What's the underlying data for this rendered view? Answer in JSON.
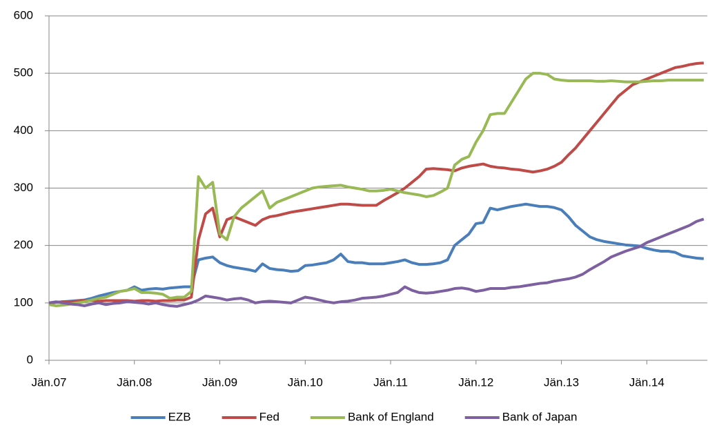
{
  "chart_data": {
    "type": "line",
    "x": [
      0,
      1,
      2,
      3,
      4,
      5,
      6,
      7,
      8,
      9,
      10,
      11,
      12,
      13,
      14,
      15,
      16,
      17,
      18,
      19,
      20,
      21,
      22,
      23,
      24,
      25,
      26,
      27,
      28,
      29,
      30,
      31,
      32,
      33,
      34,
      35,
      36,
      37,
      38,
      39,
      40,
      41,
      42,
      43,
      44,
      45,
      46,
      47,
      48,
      49,
      50,
      51,
      52,
      53,
      54,
      55,
      56,
      57,
      58,
      59,
      60,
      61,
      62,
      63,
      64,
      65,
      66,
      67,
      68,
      69,
      70,
      71,
      72,
      73,
      74,
      75,
      76,
      77,
      78,
      79,
      80,
      81,
      82,
      83,
      84,
      85,
      86,
      87,
      88,
      89,
      90,
      91,
      92
    ],
    "xlim": [
      0,
      92.5
    ],
    "xticks": [
      {
        "value": 0,
        "label": "Jän.07"
      },
      {
        "value": 12,
        "label": "Jän.08"
      },
      {
        "value": 24,
        "label": "Jän.09"
      },
      {
        "value": 36,
        "label": "Jän.10"
      },
      {
        "value": 48,
        "label": "Jän.11"
      },
      {
        "value": 60,
        "label": "Jän.12"
      },
      {
        "value": 72,
        "label": "Jän.13"
      },
      {
        "value": 84,
        "label": "Jän.14"
      }
    ],
    "ylim": [
      0,
      600
    ],
    "yticks": [
      0,
      100,
      200,
      300,
      400,
      500,
      600
    ],
    "grid": true,
    "legend": "bottom",
    "series": [
      {
        "name": "EZB",
        "color": "#4a7ebb",
        "values": [
          100,
          101,
          102,
          103,
          104,
          105,
          108,
          112,
          115,
          118,
          120,
          122,
          128,
          122,
          124,
          125,
          124,
          126,
          127,
          128,
          128,
          175,
          178,
          180,
          170,
          165,
          162,
          160,
          158,
          155,
          168,
          160,
          158,
          157,
          155,
          156,
          165,
          166,
          168,
          170,
          175,
          185,
          172,
          170,
          170,
          168,
          168,
          168,
          170,
          172,
          175,
          170,
          167,
          167,
          168,
          170,
          175,
          200,
          210,
          220,
          238,
          240,
          265,
          262,
          265,
          268,
          270,
          272,
          270,
          268,
          268,
          266,
          262,
          250,
          235,
          225,
          215,
          210,
          207,
          205,
          203,
          201,
          200,
          199,
          195,
          192,
          190,
          190,
          188,
          182,
          180,
          178,
          177
        ]
      },
      {
        "name": "Fed",
        "color": "#be4b48",
        "values": [
          100,
          101,
          102,
          102,
          103,
          104,
          104,
          103,
          104,
          104,
          104,
          104,
          103,
          104,
          104,
          103,
          104,
          104,
          105,
          105,
          110,
          210,
          255,
          265,
          215,
          245,
          250,
          245,
          240,
          235,
          245,
          250,
          252,
          255,
          258,
          260,
          262,
          264,
          266,
          268,
          270,
          272,
          272,
          271,
          270,
          270,
          270,
          278,
          285,
          292,
          300,
          310,
          320,
          333,
          334,
          333,
          332,
          330,
          335,
          338,
          340,
          342,
          338,
          336,
          335,
          333,
          332,
          330,
          328,
          330,
          333,
          338,
          345,
          358,
          370,
          385,
          400,
          415,
          430,
          445,
          460,
          470,
          480,
          485,
          490,
          495,
          500,
          505,
          510,
          512,
          515,
          517,
          518
        ]
      },
      {
        "name": "Bank of England",
        "color": "#98b954",
        "values": [
          97,
          95,
          96,
          98,
          100,
          102,
          105,
          108,
          110,
          115,
          120,
          122,
          125,
          118,
          118,
          117,
          115,
          108,
          110,
          110,
          120,
          320,
          300,
          310,
          220,
          210,
          250,
          265,
          275,
          285,
          295,
          265,
          275,
          280,
          285,
          290,
          295,
          300,
          302,
          303,
          304,
          305,
          302,
          300,
          298,
          295,
          295,
          296,
          298,
          295,
          292,
          290,
          288,
          285,
          287,
          293,
          300,
          340,
          350,
          355,
          380,
          400,
          428,
          430,
          430,
          450,
          470,
          490,
          500,
          500,
          498,
          490,
          488,
          487,
          487,
          487,
          487,
          486,
          486,
          487,
          486,
          485,
          485,
          485,
          486,
          487,
          487,
          488,
          488,
          488,
          488,
          488,
          488
        ]
      },
      {
        "name": "Bank of Japan",
        "color": "#7d60a0",
        "values": [
          100,
          102,
          100,
          98,
          97,
          95,
          98,
          100,
          97,
          99,
          100,
          102,
          101,
          100,
          98,
          100,
          97,
          95,
          94,
          97,
          100,
          105,
          112,
          110,
          108,
          105,
          107,
          108,
          105,
          100,
          102,
          103,
          102,
          101,
          100,
          105,
          110,
          108,
          105,
          102,
          100,
          102,
          103,
          105,
          108,
          109,
          110,
          112,
          115,
          118,
          128,
          122,
          118,
          117,
          118,
          120,
          122,
          125,
          126,
          124,
          120,
          122,
          125,
          125,
          125,
          127,
          128,
          130,
          132,
          134,
          135,
          138,
          140,
          142,
          145,
          150,
          158,
          165,
          172,
          180,
          185,
          190,
          194,
          198,
          205,
          210,
          215,
          220,
          225,
          230,
          235,
          242,
          246
        ]
      }
    ]
  }
}
